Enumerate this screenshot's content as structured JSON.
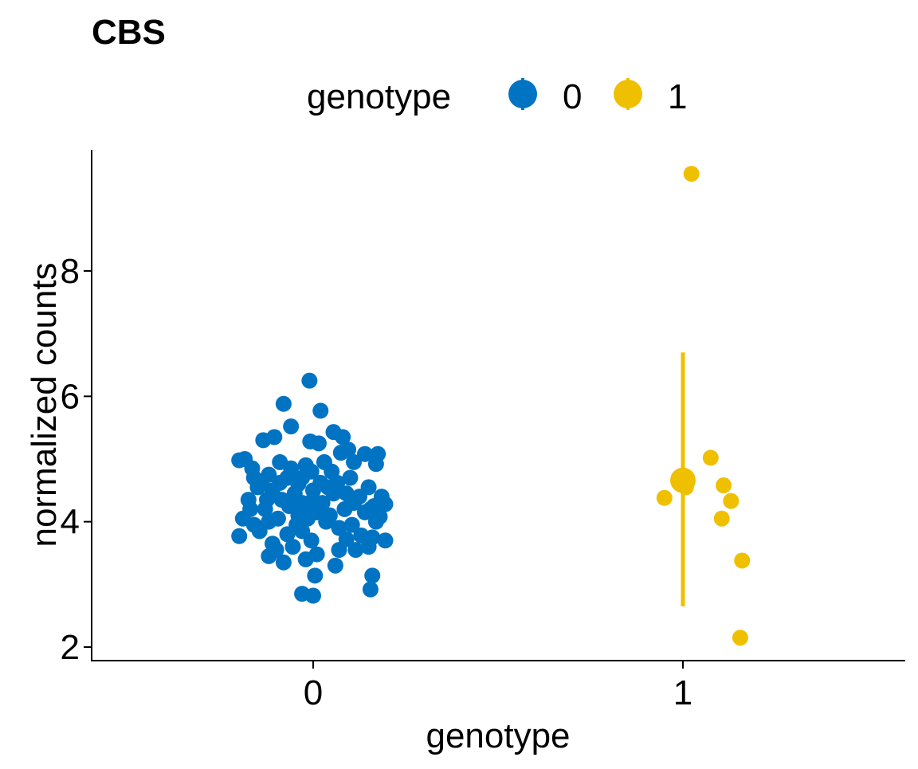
{
  "chart_data": {
    "type": "scatter",
    "title": "CBS",
    "xlabel": "genotype",
    "ylabel": "normalized counts",
    "legend": {
      "title": "genotype",
      "position": "top"
    },
    "x_categories": [
      "0",
      "1"
    ],
    "ylim": [
      1.8,
      9.8
    ],
    "y_ticks": [
      2,
      4,
      6,
      8
    ],
    "grid": false,
    "series": [
      {
        "name": "0",
        "color": "#0073C2",
        "points": [
          [
            -0.2,
            4.98
          ],
          [
            -0.185,
            5.0
          ],
          [
            -0.165,
            4.85
          ],
          [
            -0.15,
            4.55
          ],
          [
            -0.175,
            4.35
          ],
          [
            -0.19,
            4.05
          ],
          [
            -0.2,
            3.77
          ],
          [
            -0.16,
            3.95
          ],
          [
            -0.13,
            4.2
          ],
          [
            -0.12,
            3.45
          ],
          [
            -0.11,
            3.65
          ],
          [
            -0.135,
            5.3
          ],
          [
            -0.105,
            5.35
          ],
          [
            -0.08,
            5.88
          ],
          [
            -0.06,
            5.52
          ],
          [
            -0.09,
            4.95
          ],
          [
            -0.07,
            4.7
          ],
          [
            -0.05,
            4.45
          ],
          [
            -0.04,
            4.6
          ],
          [
            -0.03,
            4.3
          ],
          [
            -0.01,
            6.25
          ],
          [
            -0.02,
            4.9
          ],
          [
            0.02,
            5.77
          ],
          [
            -0.008,
            5.28
          ],
          [
            0.015,
            5.25
          ],
          [
            0.055,
            5.43
          ],
          [
            0.08,
            5.35
          ],
          [
            0.095,
            5.15
          ],
          [
            0.075,
            5.1
          ],
          [
            0.11,
            4.95
          ],
          [
            0.14,
            5.08
          ],
          [
            0.175,
            5.08
          ],
          [
            0.17,
            4.92
          ],
          [
            0.15,
            4.55
          ],
          [
            0.185,
            4.4
          ],
          [
            0.195,
            4.28
          ],
          [
            0.165,
            4.25
          ],
          [
            0.125,
            4.4
          ],
          [
            0.1,
            4.7
          ],
          [
            0.085,
            4.2
          ],
          [
            0.055,
            4.45
          ],
          [
            0.045,
            4.1
          ],
          [
            0.025,
            4.3
          ],
          [
            0.01,
            4.15
          ],
          [
            -0.015,
            4.05
          ],
          [
            -0.04,
            4.1
          ],
          [
            -0.065,
            4.25
          ],
          [
            -0.085,
            4.35
          ],
          [
            -0.11,
            4.5
          ],
          [
            -0.14,
            4.6
          ],
          [
            -0.12,
            4.0
          ],
          [
            -0.145,
            3.85
          ],
          [
            -0.1,
            3.55
          ],
          [
            -0.08,
            3.35
          ],
          [
            -0.055,
            3.6
          ],
          [
            -0.03,
            3.85
          ],
          [
            -0.005,
            3.7
          ],
          [
            0.01,
            3.48
          ],
          [
            -0.02,
            3.4
          ],
          [
            0.06,
            3.3
          ],
          [
            0.07,
            3.55
          ],
          [
            0.09,
            3.72
          ],
          [
            0.105,
            3.95
          ],
          [
            0.115,
            3.55
          ],
          [
            0.15,
            3.6
          ],
          [
            0.16,
            3.75
          ],
          [
            0.195,
            3.7
          ],
          [
            0.17,
            4.0
          ],
          [
            0.155,
            4.2
          ],
          [
            0.13,
            3.78
          ],
          [
            0.155,
            2.92
          ],
          [
            0.16,
            3.14
          ],
          [
            0.005,
            3.14
          ],
          [
            -0.03,
            2.85
          ],
          [
            0.0,
            2.82
          ],
          [
            0.04,
            4.55
          ],
          [
            0.02,
            4.62
          ],
          [
            -0.005,
            4.8
          ],
          [
            -0.03,
            4.7
          ],
          [
            -0.06,
            4.85
          ],
          [
            -0.09,
            4.62
          ],
          [
            -0.12,
            4.75
          ],
          [
            -0.16,
            4.7
          ],
          [
            0.05,
            4.8
          ],
          [
            0.03,
            4.95
          ],
          [
            0.065,
            4.62
          ],
          [
            0.09,
            4.45
          ],
          [
            0.11,
            4.3
          ],
          [
            0.14,
            4.15
          ],
          [
            0.18,
            4.08
          ],
          [
            -0.17,
            4.2
          ],
          [
            -0.095,
            4.05
          ],
          [
            -0.045,
            3.95
          ],
          [
            0.0,
            4.35
          ],
          [
            0.0,
            4.5
          ],
          [
            -0.015,
            4.2
          ],
          [
            0.035,
            4.0
          ],
          [
            0.07,
            3.9
          ],
          [
            -0.07,
            3.8
          ],
          [
            -0.125,
            4.35
          ]
        ]
      },
      {
        "name": "1",
        "color": "#EFC000",
        "points": [
          [
            1.023,
            9.55
          ],
          [
            1.075,
            5.02
          ],
          [
            0.95,
            4.38
          ],
          [
            1.008,
            4.55
          ],
          [
            1.11,
            4.58
          ],
          [
            1.13,
            4.33
          ],
          [
            1.105,
            4.05
          ],
          [
            1.16,
            3.38
          ],
          [
            1.155,
            2.15
          ]
        ],
        "summary": {
          "x": 1,
          "mean": 4.66,
          "lower": 2.65,
          "upper": 6.7
        }
      }
    ]
  }
}
